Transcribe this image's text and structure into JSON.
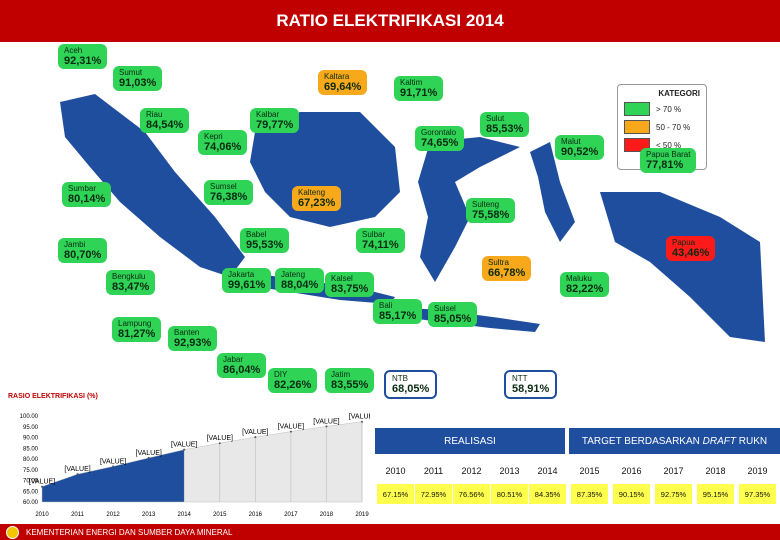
{
  "title": "RATIO ELEKTRIFIKASI 2014",
  "legend": {
    "title": "KATEGORI",
    "items": [
      {
        "label": "> 70 %",
        "color": "#2fd457"
      },
      {
        "label": "50 - 70 %",
        "color": "#f7a81b"
      },
      {
        "label": "< 50 %",
        "color": "#ff1a1a"
      }
    ]
  },
  "provinces": [
    {
      "name": "Aceh",
      "value": "92,31%",
      "style": "green"
    },
    {
      "name": "Sumut",
      "value": "91,03%",
      "style": "green"
    },
    {
      "name": "Kaltara",
      "value": "69,64%",
      "style": "orange"
    },
    {
      "name": "Kaltim",
      "value": "91,71%",
      "style": "green"
    },
    {
      "name": "Riau",
      "value": "84,54%",
      "style": "green"
    },
    {
      "name": "Kalbar",
      "value": "79,77%",
      "style": "green"
    },
    {
      "name": "Kepri",
      "value": "74,06%",
      "style": "green"
    },
    {
      "name": "Gorontalo",
      "value": "74,65%",
      "style": "green"
    },
    {
      "name": "Sulut",
      "value": "85,53%",
      "style": "green"
    },
    {
      "name": "Malut",
      "value": "90,52%",
      "style": "green"
    },
    {
      "name": "Papua Barat",
      "value": "77,81%",
      "style": "green"
    },
    {
      "name": "Sumbar",
      "value": "80,14%",
      "style": "green"
    },
    {
      "name": "Sumsel",
      "value": "76,38%",
      "style": "green"
    },
    {
      "name": "Kalteng",
      "value": "67,23%",
      "style": "orange"
    },
    {
      "name": "Sulteng",
      "value": "75,58%",
      "style": "green"
    },
    {
      "name": "Babel",
      "value": "95,53%",
      "style": "green"
    },
    {
      "name": "Sulbar",
      "value": "74,11%",
      "style": "green"
    },
    {
      "name": "Jambi",
      "value": "80,70%",
      "style": "green"
    },
    {
      "name": "Papua",
      "value": "43,46%",
      "style": "red"
    },
    {
      "name": "Sultra",
      "value": "66,78%",
      "style": "orange"
    },
    {
      "name": "Bengkulu",
      "value": "83,47%",
      "style": "green"
    },
    {
      "name": "Jakarta",
      "value": "99,61%",
      "style": "green"
    },
    {
      "name": "Jateng",
      "value": "88,04%",
      "style": "green"
    },
    {
      "name": "Kalsel",
      "value": "83,75%",
      "style": "green"
    },
    {
      "name": "Maluku",
      "value": "82,22%",
      "style": "green"
    },
    {
      "name": "Bali",
      "value": "85,17%",
      "style": "green"
    },
    {
      "name": "Sulsel",
      "value": "85,05%",
      "style": "green"
    },
    {
      "name": "Lampung",
      "value": "81,27%",
      "style": "green"
    },
    {
      "name": "Banten",
      "value": "92,93%",
      "style": "green"
    },
    {
      "name": "Jabar",
      "value": "86,04%",
      "style": "green"
    },
    {
      "name": "DIY",
      "value": "82,26%",
      "style": "green"
    },
    {
      "name": "Jatim",
      "value": "83,55%",
      "style": "green"
    },
    {
      "name": "NTB",
      "value": "68,05%",
      "style": "blue"
    },
    {
      "name": "NTT",
      "value": "58,91%",
      "style": "blue"
    }
  ],
  "chart_caption": "RASIO ELEKTRIFIKASI (%)",
  "chart_data": {
    "type": "area",
    "x": [
      2010,
      2011,
      2012,
      2013,
      2014,
      2015,
      2016,
      2017,
      2018,
      2019
    ],
    "series": [
      {
        "values": [
          67.15,
          72.95,
          76.56,
          80.51,
          84.35,
          87.35,
          90.15,
          92.75,
          95.15,
          97.35
        ]
      }
    ],
    "data_label": "[VALUE]",
    "yticks": [
      "100.00",
      "95.00",
      "90.00",
      "85.00",
      "80.00",
      "75.00",
      "70.00",
      "65.00",
      "60.00"
    ],
    "ylim": [
      60,
      100
    ],
    "colors": {
      "realisasi": "#1f4e9e",
      "target": "#e8e8e8",
      "stroke": "#bfbfbf"
    }
  },
  "table": {
    "realisasi_header": "REALISASI",
    "target_header": "TARGET BERDASARKAN DRAFT RUKN",
    "years": [
      "2010",
      "2011",
      "2012",
      "2013",
      "2014",
      "2015",
      "2016",
      "2017",
      "2018",
      "2019"
    ],
    "values": [
      "67.15%",
      "72.95%",
      "76.56%",
      "80.51%",
      "84.35%",
      "87.35%",
      "90.15%",
      "92.75%",
      "95.15%",
      "97.35%"
    ]
  },
  "footer": "KEMENTERIAN ENERGI DAN SUMBER DAYA MINERAL"
}
